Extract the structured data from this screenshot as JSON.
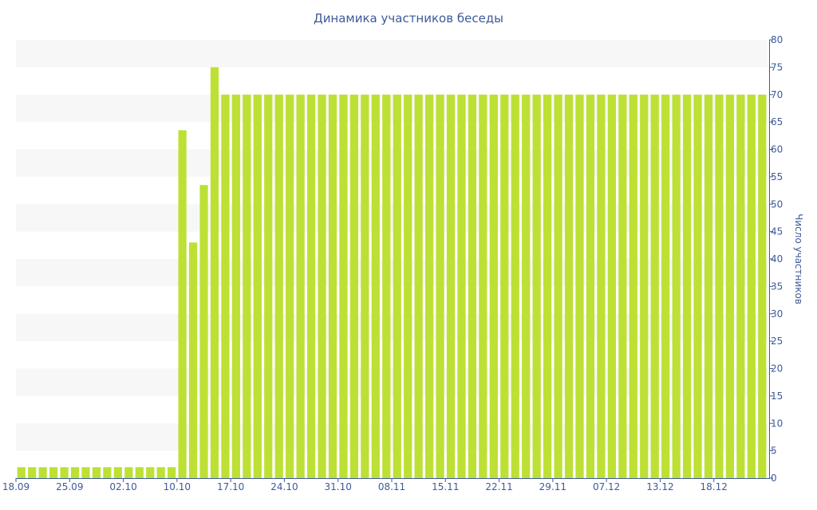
{
  "chart_data": {
    "type": "bar",
    "title": "Динамика участников беседы",
    "xlabel": "",
    "ylabel": "Число участников",
    "ylim": [
      0,
      80
    ],
    "yticks": [
      0,
      5,
      10,
      15,
      20,
      25,
      30,
      35,
      40,
      45,
      50,
      55,
      60,
      65,
      70,
      75,
      80
    ],
    "y_axis_side": "right",
    "x_tick_labels": [
      "18.09",
      "25.09",
      "02.10",
      "10.10",
      "17.10",
      "24.10",
      "31.10",
      "08.11",
      "15.11",
      "22.11",
      "29.11",
      "07.12",
      "13.12",
      "18.12"
    ],
    "x_tick_index": [
      0,
      5,
      10,
      15,
      20,
      25,
      30,
      35,
      40,
      45,
      50,
      55,
      60,
      65
    ],
    "grid": "alternating horizontal bands",
    "legend": "none",
    "colors": {
      "bar": "#bde035",
      "band": "#f7f7f7",
      "text": "#3d5a98",
      "axis": "#3d5a98"
    },
    "values": [
      2,
      2,
      2,
      2,
      2,
      2,
      2,
      2,
      2,
      2,
      2,
      2,
      2,
      2,
      2,
      63.5,
      43,
      53.5,
      75,
      70,
      70,
      70,
      70,
      70,
      70,
      70,
      70,
      70,
      70,
      70,
      70,
      70,
      70,
      70,
      70,
      70,
      70,
      70,
      70,
      70,
      70,
      70,
      70,
      70,
      70,
      70,
      70,
      70,
      70,
      70,
      70,
      70,
      70,
      70,
      70,
      70,
      70,
      70,
      70,
      70,
      70,
      70,
      70,
      70,
      70,
      70,
      70,
      70,
      70,
      70
    ]
  }
}
